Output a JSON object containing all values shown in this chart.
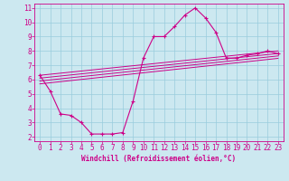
{
  "xlabel": "Windchill (Refroidissement éolien,°C)",
  "bg_color": "#cce8f0",
  "line_color": "#cc0088",
  "xlim": [
    -0.5,
    23.5
  ],
  "ylim": [
    1.7,
    11.3
  ],
  "yticks": [
    2,
    3,
    4,
    5,
    6,
    7,
    8,
    9,
    10,
    11
  ],
  "xticks": [
    0,
    1,
    2,
    3,
    4,
    5,
    6,
    7,
    8,
    9,
    10,
    11,
    12,
    13,
    14,
    15,
    16,
    17,
    18,
    19,
    20,
    21,
    22,
    23
  ],
  "main_curve_x": [
    0,
    1,
    2,
    3,
    4,
    5,
    6,
    7,
    8,
    9,
    10,
    11,
    12,
    13,
    14,
    15,
    16,
    17,
    18,
    19,
    20,
    21,
    22,
    23
  ],
  "main_curve_y": [
    6.3,
    5.2,
    3.6,
    3.5,
    3.0,
    2.2,
    2.2,
    2.2,
    2.3,
    4.5,
    7.5,
    9.0,
    9.0,
    9.7,
    10.5,
    11.0,
    10.3,
    9.3,
    7.5,
    7.5,
    7.7,
    7.8,
    8.0,
    7.8
  ],
  "diag_lines": [
    {
      "x": [
        0,
        23
      ],
      "y": [
        6.3,
        8.0
      ]
    },
    {
      "x": [
        0,
        23
      ],
      "y": [
        6.1,
        7.82
      ]
    },
    {
      "x": [
        0,
        23
      ],
      "y": [
        5.9,
        7.65
      ]
    },
    {
      "x": [
        0,
        23
      ],
      "y": [
        5.7,
        7.48
      ]
    }
  ],
  "grid_color": "#99ccdd",
  "tick_fontsize": 5.5,
  "xlabel_fontsize": 5.5
}
